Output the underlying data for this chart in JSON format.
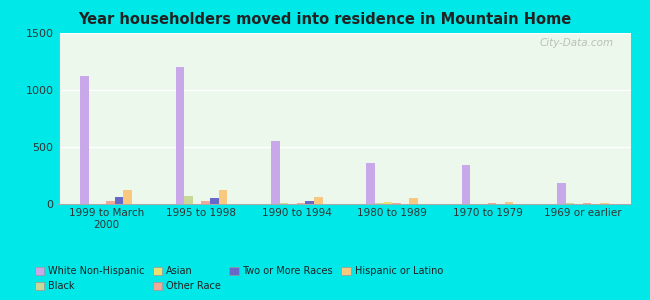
{
  "title": "Year householders moved into residence in Mountain Home",
  "categories": [
    "1999 to March\n2000",
    "1995 to 1998",
    "1990 to 1994",
    "1980 to 1989",
    "1970 to 1979",
    "1969 or earlier"
  ],
  "series": {
    "White Non-Hispanic": [
      1120,
      1200,
      550,
      360,
      340,
      180
    ],
    "Black": [
      0,
      70,
      5,
      5,
      0,
      5
    ],
    "Asian": [
      0,
      0,
      0,
      15,
      0,
      0
    ],
    "Other Race": [
      25,
      30,
      5,
      5,
      10,
      5
    ],
    "Two or More Races": [
      60,
      50,
      30,
      0,
      0,
      0
    ],
    "Hispanic or Latino": [
      120,
      120,
      60,
      50,
      15,
      10
    ]
  },
  "colors": {
    "White Non-Hispanic": "#c8a8e8",
    "Black": "#c8d898",
    "Asian": "#e8e070",
    "Other Race": "#f0a898",
    "Two or More Races": "#6868c8",
    "Hispanic or Latino": "#f8c880"
  },
  "legend_order_row1": [
    "White Non-Hispanic",
    "Black",
    "Asian",
    "Other Race"
  ],
  "legend_order_row2": [
    "Two or More Races",
    "Hispanic or Latino"
  ],
  "ylim": [
    0,
    1500
  ],
  "yticks": [
    0,
    500,
    1000,
    1500
  ],
  "outer_bg": "#00e8e8",
  "plot_bg": "#edf8ed",
  "watermark": "City-Data.com"
}
